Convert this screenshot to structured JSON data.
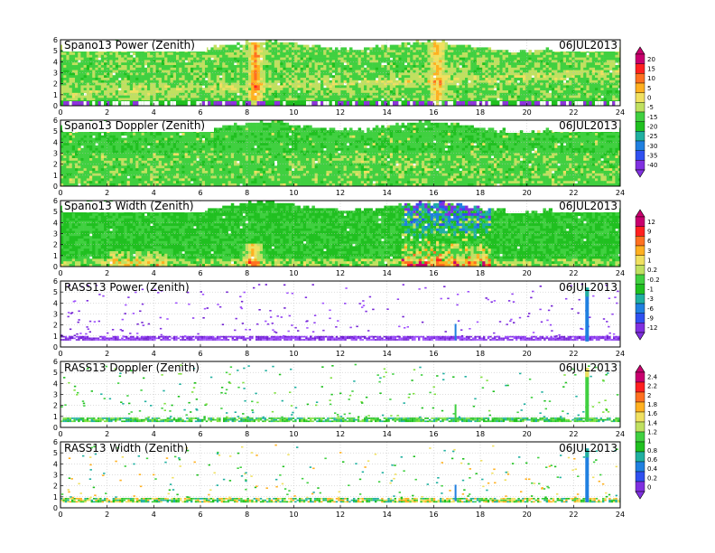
{
  "figure": {
    "x_ticks": [
      "0",
      "2",
      "4",
      "6",
      "8",
      "10",
      "12",
      "14",
      "16",
      "18",
      "20",
      "22",
      "24"
    ],
    "y_ticks": [
      "0",
      "1",
      "2",
      "3",
      "4",
      "5",
      "6"
    ],
    "xlim": [
      0,
      24
    ],
    "ylim": [
      0,
      6
    ]
  },
  "colorbars": [
    {
      "name": "snr",
      "labels": [
        "20",
        "15",
        "10",
        "5",
        "0",
        "-5",
        "-15",
        "-20",
        "-25",
        "-30",
        "-35",
        "-40"
      ],
      "colors": [
        "#c8006e",
        "#ff2020",
        "#ff7020",
        "#ffb020",
        "#f0e060",
        "#c0e060",
        "#40d040",
        "#20c020",
        "#20b0a0",
        "#2080e0",
        "#3050f0",
        "#8030e0"
      ]
    },
    {
      "name": "width",
      "labels": [
        "12",
        "9",
        "6",
        "3",
        "1",
        "0.2",
        "-0.2",
        "-1",
        "-3",
        "-6",
        "-9",
        "-12"
      ],
      "colors": [
        "#c8006e",
        "#ff2020",
        "#ff7020",
        "#ffb020",
        "#f0e060",
        "#c0e060",
        "#40d040",
        "#20c020",
        "#20b0a0",
        "#2080e0",
        "#3050f0",
        "#8030e0"
      ]
    },
    {
      "name": "rass",
      "labels": [
        "2.4",
        "2.2",
        "2",
        "1.8",
        "1.6",
        "1.4",
        "1.2",
        "1",
        "0.8",
        "0.6",
        "0.4",
        "0.2",
        "0"
      ],
      "colors": [
        "#c8006e",
        "#ff2020",
        "#ff7020",
        "#ffb020",
        "#f0e060",
        "#c0e060",
        "#40d040",
        "#20c020",
        "#20b0a0",
        "#2080e0",
        "#3050f0",
        "#8030e0"
      ]
    }
  ],
  "chart_data": [
    {
      "type": "heatmap",
      "title": "Spano13 Power (Zenith)",
      "date": "06JUL2013",
      "style": "dense-power",
      "xlim": [
        0,
        24
      ],
      "ylim": [
        0,
        6
      ]
    },
    {
      "type": "heatmap",
      "title": "Spano13 Doppler (Zenith)",
      "date": "06JUL2013",
      "style": "dense-doppler",
      "xlim": [
        0,
        24
      ],
      "ylim": [
        0,
        6
      ]
    },
    {
      "type": "heatmap",
      "title": "Spano13 Width (Zenith)",
      "date": "06JUL2013",
      "style": "dense-width",
      "xlim": [
        0,
        24
      ],
      "ylim": [
        0,
        6
      ]
    },
    {
      "type": "heatmap",
      "title": "RASS13 Power (Zenith)",
      "date": "06JUL2013",
      "style": "sparse-purple",
      "xlim": [
        0,
        24
      ],
      "ylim": [
        0,
        6
      ],
      "features": {
        "band_height": [
          0.6,
          1.0
        ],
        "spike_time": 22.5,
        "minor_spike_time": 16.9
      }
    },
    {
      "type": "heatmap",
      "title": "RASS13 Doppler (Zenith)",
      "date": "06JUL2013",
      "style": "sparse-green",
      "xlim": [
        0,
        24
      ],
      "ylim": [
        0,
        6
      ],
      "features": {
        "band_height": [
          0.5,
          0.9
        ],
        "spike_time": 22.5,
        "minor_spike_time": 16.9
      }
    },
    {
      "type": "heatmap",
      "title": "RASS13 Width (Zenith)",
      "date": "06JUL2013",
      "style": "sparse-width",
      "xlim": [
        0,
        24
      ],
      "ylim": [
        0,
        6
      ],
      "features": {
        "band_height": [
          0.5,
          0.9
        ],
        "spike_time": 22.5,
        "minor_spike_time": 16.9
      }
    }
  ]
}
